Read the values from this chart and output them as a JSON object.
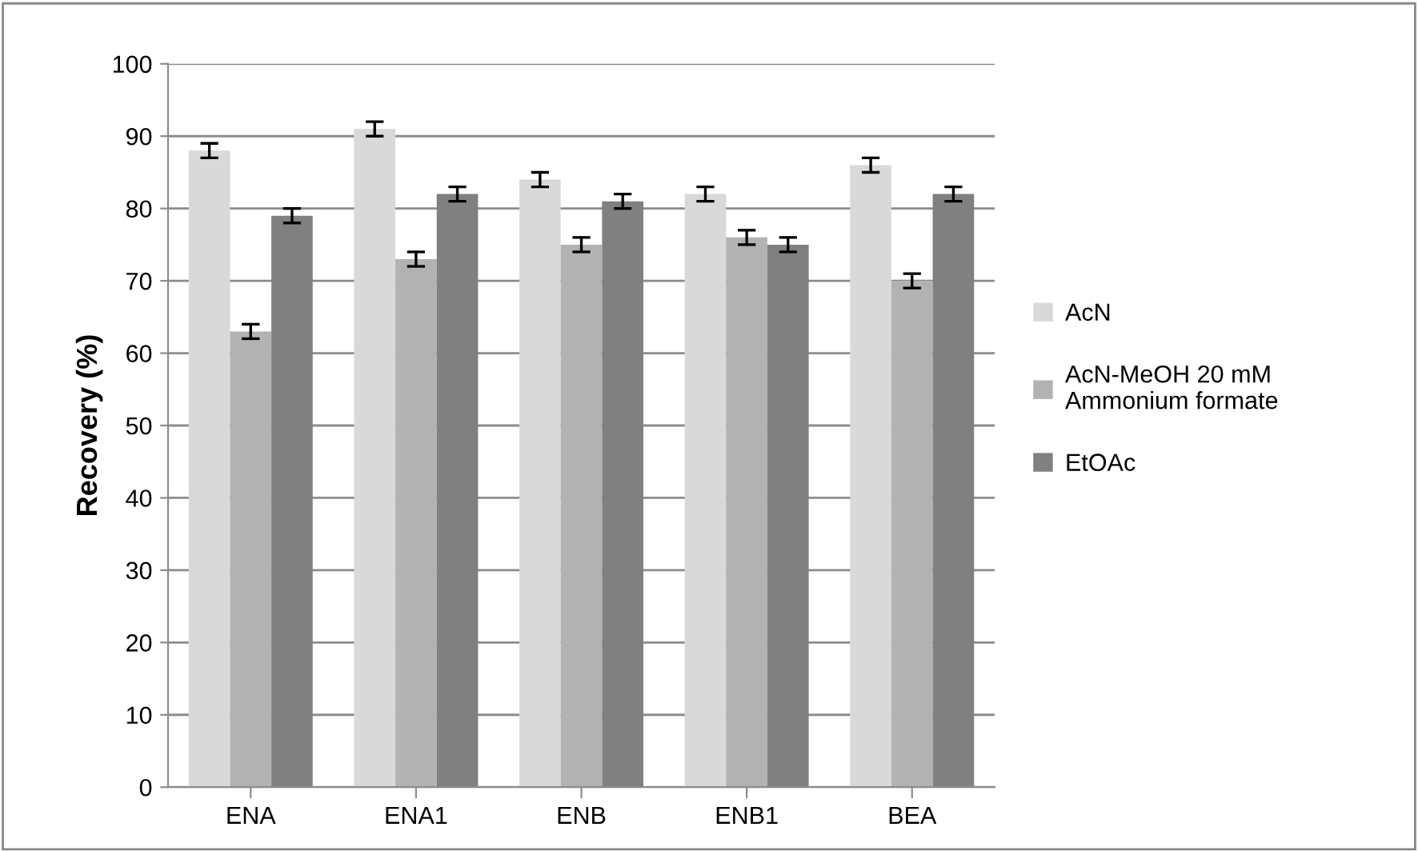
{
  "chart_data": {
    "type": "bar",
    "ylabel": "Recovery (%)",
    "categories": [
      "ENA",
      "ENA1",
      "ENB",
      "ENB1",
      "BEA"
    ],
    "series": [
      {
        "name": "AcN",
        "color": "#d9d9d9",
        "values": [
          88,
          91,
          84,
          82,
          86
        ],
        "errors": [
          1,
          1,
          1,
          1,
          1
        ]
      },
      {
        "name": "AcN-MeOH 20 mM\nAmmonium formate",
        "color": "#b2b2b2",
        "values": [
          63,
          73,
          75,
          76,
          70
        ],
        "errors": [
          1,
          1,
          1,
          1,
          1
        ]
      },
      {
        "name": "EtOAc",
        "color": "#808080",
        "values": [
          79,
          82,
          81,
          75,
          82
        ],
        "errors": [
          1,
          1,
          1,
          1,
          1
        ]
      }
    ],
    "ylim": [
      0,
      100
    ],
    "yticks": [
      0,
      10,
      20,
      30,
      40,
      50,
      60,
      70,
      80,
      90,
      100
    ],
    "grid": "y",
    "legend": "right"
  }
}
